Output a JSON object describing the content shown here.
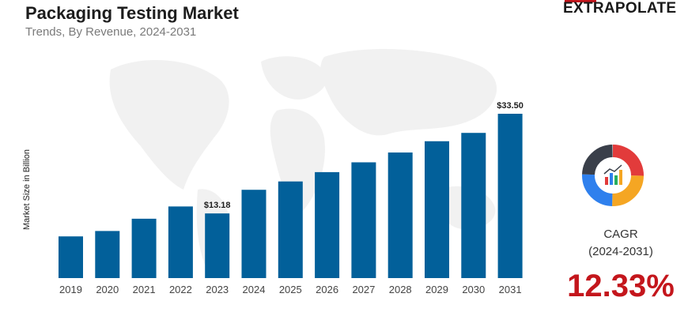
{
  "header": {
    "title": "Packaging Testing Market",
    "subtitle": "Trends, By Revenue,  2024-2031",
    "brand": "EXTRAPOLATE"
  },
  "cagr": {
    "label": "CAGR",
    "period": "(2024-2031)",
    "value": "12.33%"
  },
  "colors": {
    "bar": "#02609a",
    "accent": "#c4161c"
  },
  "icon": "donut-chart-icon",
  "chart_data": {
    "type": "bar",
    "title": "Packaging Testing Market",
    "ylabel": "Market Size in Billion",
    "categories": [
      "2019",
      "2020",
      "2021",
      "2022",
      "2023",
      "2024",
      "2025",
      "2026",
      "2027",
      "2028",
      "2029",
      "2030",
      "2031"
    ],
    "values": [
      8.5,
      9.6,
      12.1,
      14.6,
      13.18,
      18.0,
      19.7,
      21.6,
      23.6,
      25.6,
      27.9,
      29.6,
      33.5
    ],
    "data_labels": [
      {
        "category": "2023",
        "text": "$13.18"
      },
      {
        "category": "2031",
        "text": "$33.50"
      }
    ],
    "ylim": [
      0,
      33.5
    ],
    "grid": false,
    "legend": "none"
  }
}
